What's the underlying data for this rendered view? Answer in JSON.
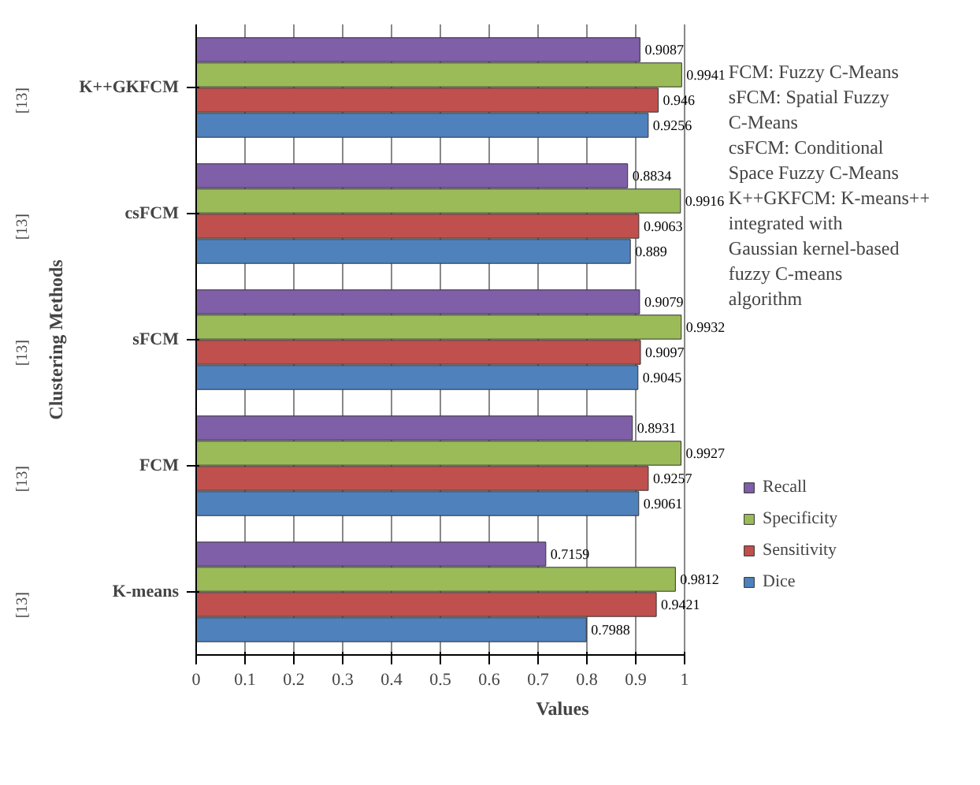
{
  "chart_data": {
    "type": "bar",
    "orientation": "horizontal",
    "xlabel": "Values",
    "ylabel": "Clustering Methods",
    "categories": [
      "K++GKFCM",
      "csFCM",
      "sFCM",
      "FCM",
      "K-means"
    ],
    "series": [
      {
        "name": "Recall",
        "color": "#7f5fa8",
        "values": [
          0.9087,
          0.8834,
          0.9079,
          0.8931,
          0.7159
        ]
      },
      {
        "name": "Specificity",
        "color": "#9bbb59",
        "values": [
          0.9941,
          0.9916,
          0.9932,
          0.9927,
          0.9812
        ]
      },
      {
        "name": "Sensitivity",
        "color": "#c0504d",
        "values": [
          0.946,
          0.9063,
          0.9097,
          0.9257,
          0.9421
        ]
      },
      {
        "name": "Dice",
        "color": "#4f81bd",
        "values": [
          0.9256,
          0.889,
          0.9045,
          0.9061,
          0.7988
        ]
      }
    ],
    "xlim": [
      0,
      1
    ],
    "xticks": [
      0,
      0.1,
      0.2,
      0.3,
      0.4,
      0.5,
      0.6,
      0.7,
      0.8,
      0.9,
      1
    ],
    "grid": "x",
    "legend": "right",
    "data_labels": true,
    "annotations": [
      "[13]",
      "[13]",
      "[13]",
      "[13]",
      "[13]",
      "FCM: Fuzzy C-Means",
      "sFCM: Spatial Fuzzy C-Means",
      "csFCM: Conditional Space Fuzzy C-Means",
      "K++GKFCM: K-means++ integrated with Gaussian kernel-based fuzzy C-means algorithm"
    ]
  }
}
